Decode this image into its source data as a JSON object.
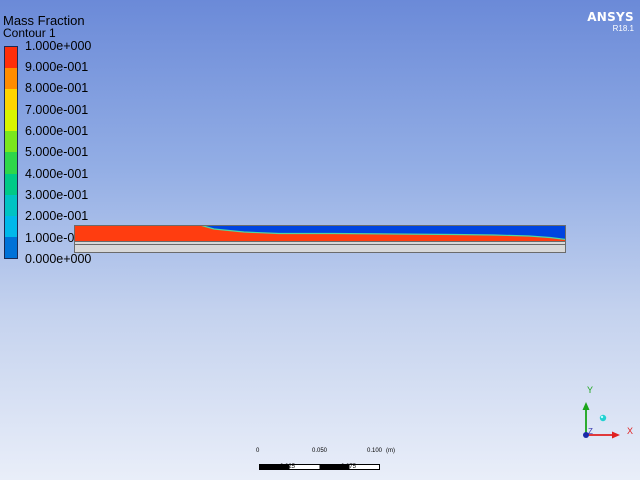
{
  "app": {
    "logo_text": "ANSYS",
    "version": "R18.1"
  },
  "legend": {
    "title": "Mass Fraction",
    "subtitle": "Contour 1",
    "labels": [
      "1.000e+000",
      "9.000e-001",
      "8.000e-001",
      "7.000e-001",
      "6.000e-001",
      "5.000e-001",
      "4.000e-001",
      "3.000e-001",
      "2.000e-001",
      "1.000e-001",
      "0.000e+000"
    ],
    "colors": [
      "#ff2e0a",
      "#ff8c00",
      "#ffd400",
      "#d8f500",
      "#7ae61e",
      "#2ed64a",
      "#00c987",
      "#00c3c3",
      "#00b8ea",
      "#0072d8",
      "#0037dd"
    ]
  },
  "scale": {
    "top_labels": [
      "0",
      "0.050",
      "0.100",
      "(m)"
    ],
    "bottom_labels": [
      "0.025",
      "0.075"
    ]
  },
  "triad": {
    "x_label": "X",
    "y_label": "Y",
    "z_label": "Z",
    "colors": {
      "x": "#e02020",
      "y": "#1aa51a",
      "z": "#1a2aa8"
    }
  },
  "contour": {
    "colors": {
      "liquid": "#ff3d10",
      "gas": "#0044e0",
      "interface": "#4fd6a0",
      "wall": "#d8d8d8"
    }
  }
}
